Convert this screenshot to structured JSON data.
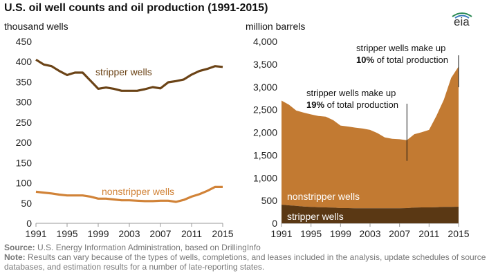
{
  "title": "U.S. oil well counts and oil production (1991-2015)",
  "brand": "eia",
  "colors": {
    "stripper": "#6b4316",
    "nonstripper": "#d18338",
    "area_stripper": "#5a3814",
    "area_nonstripper": "#c27a32",
    "axis": "#999999"
  },
  "source": {
    "label": "Source:",
    "text": " U.S. Energy Information Administration, based on DrillingInfo"
  },
  "note": {
    "label": "Note:",
    "text": " Results can vary because of the types of wells, completions, and leases included in the analysis, update schedules of source databases, and estimation results for a number of late-reporting states."
  },
  "chart_data": [
    {
      "type": "line",
      "ylabel": "thousand wells",
      "ylim": [
        0,
        450
      ],
      "yticks": [
        "0",
        "50",
        "100",
        "150",
        "200",
        "250",
        "300",
        "350",
        "400",
        "450"
      ],
      "xticks": [
        "1991",
        "1995",
        "1999",
        "2003",
        "2007",
        "2011",
        "2015"
      ],
      "x": [
        1991,
        1992,
        1993,
        1994,
        1995,
        1996,
        1997,
        1998,
        1999,
        2000,
        2001,
        2002,
        2003,
        2004,
        2005,
        2006,
        2007,
        2008,
        2009,
        2010,
        2011,
        2012,
        2013,
        2014,
        2015
      ],
      "series": [
        {
          "name": "stripper wells",
          "values": [
            405,
            393,
            389,
            377,
            367,
            373,
            373,
            353,
            333,
            336,
            333,
            328,
            328,
            328,
            332,
            337,
            334,
            349,
            352,
            356,
            368,
            377,
            382,
            389,
            387
          ]
        },
        {
          "name": "nonstripper wells",
          "values": [
            78,
            76,
            74,
            71,
            69,
            69,
            69,
            66,
            61,
            61,
            59,
            57,
            57,
            56,
            55,
            55,
            56,
            56,
            53,
            58,
            66,
            72,
            80,
            90,
            90
          ]
        }
      ]
    },
    {
      "type": "area",
      "ylabel": "million barrels",
      "ylim": [
        0,
        4000
      ],
      "yticks": [
        "0",
        "500",
        "1,000",
        "1,500",
        "2,000",
        "2,500",
        "3,000",
        "3,500",
        "4,000"
      ],
      "xticks": [
        "1991",
        "1995",
        "1999",
        "2003",
        "2007",
        "2011",
        "2015"
      ],
      "x": [
        1991,
        1992,
        1993,
        1994,
        1995,
        1996,
        1997,
        1998,
        1999,
        2000,
        2001,
        2002,
        2003,
        2004,
        2005,
        2006,
        2007,
        2008,
        2009,
        2010,
        2011,
        2012,
        2013,
        2014,
        2015
      ],
      "series": [
        {
          "name": "stripper wells",
          "values": [
            410,
            395,
            385,
            370,
            360,
            355,
            350,
            345,
            335,
            335,
            330,
            330,
            330,
            330,
            330,
            330,
            330,
            335,
            345,
            350,
            350,
            355,
            360,
            360,
            365
          ]
        },
        {
          "name": "nonstripper wells",
          "values": [
            2290,
            2215,
            2095,
            2065,
            2035,
            2005,
            1995,
            1925,
            1815,
            1795,
            1775,
            1755,
            1725,
            1655,
            1560,
            1530,
            1520,
            1495,
            1615,
            1655,
            1705,
            2010,
            2360,
            2840,
            3085
          ]
        }
      ],
      "annotations": [
        {
          "x": 2008,
          "line1": "stripper wells make up",
          "bold": "19%",
          "rest": " of total production"
        },
        {
          "x": 2015,
          "line1": "stripper wells make up",
          "bold": "10%",
          "rest": " of total production"
        }
      ]
    }
  ]
}
